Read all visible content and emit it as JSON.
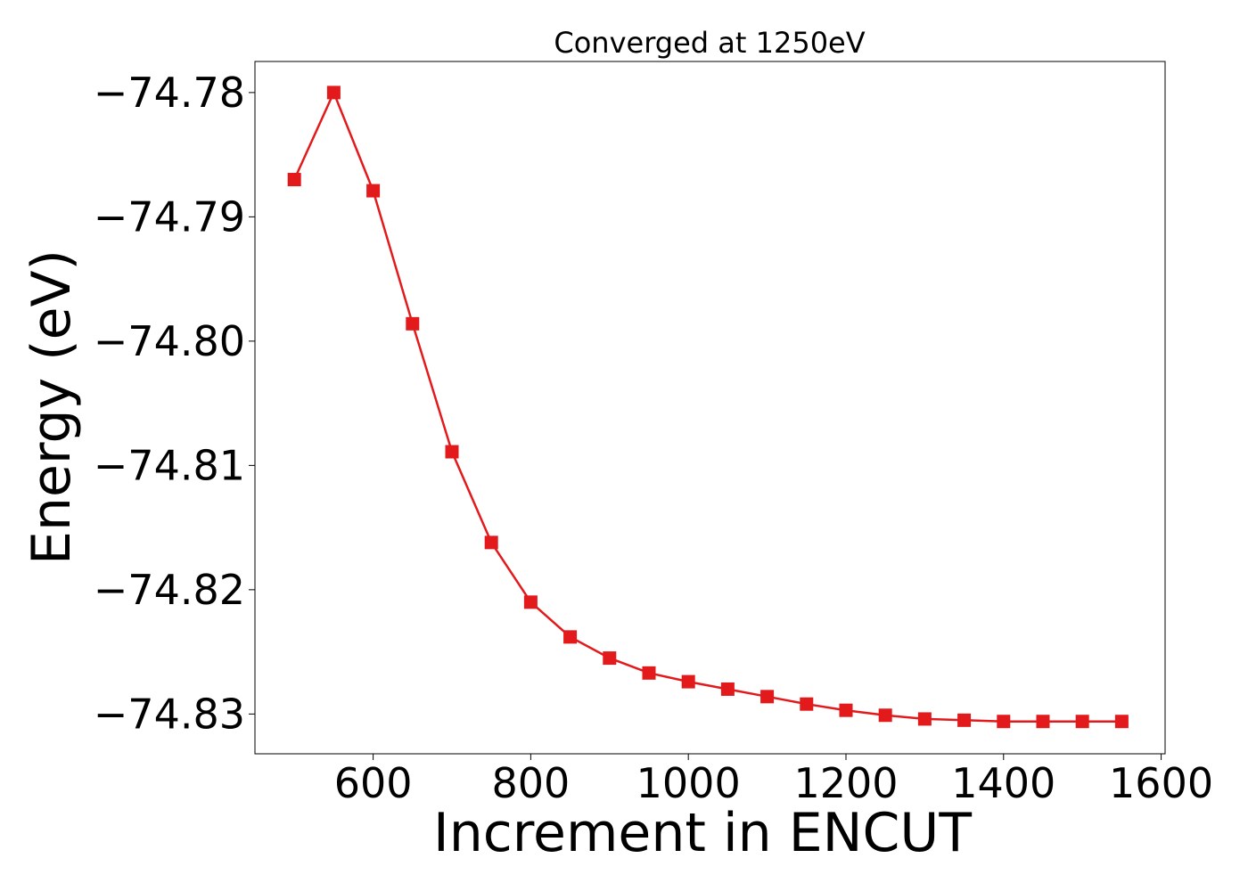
{
  "chart_data": {
    "type": "line",
    "title": "Converged at 1250eV",
    "xlabel": "Increment in ENCUT",
    "ylabel": "Energy (eV)",
    "xlim": [
      450,
      1605
    ],
    "ylim": [
      -74.8332,
      -74.7775
    ],
    "xticks": [
      600,
      800,
      1000,
      1200,
      1400,
      1600
    ],
    "xtick_labels": [
      "600",
      "800",
      "1000",
      "1200",
      "1400",
      "1600"
    ],
    "yticks": [
      -74.78,
      -74.79,
      -74.8,
      -74.81,
      -74.82,
      -74.83
    ],
    "ytick_labels": [
      "−74.78",
      "−74.79",
      "−74.80",
      "−74.81",
      "−74.82",
      "−74.83"
    ],
    "grid": false,
    "series": [
      {
        "color": "#e31a1c",
        "marker": "square",
        "x": [
          500,
          550,
          600,
          650,
          700,
          750,
          800,
          850,
          900,
          950,
          1000,
          1050,
          1100,
          1150,
          1200,
          1250,
          1300,
          1350,
          1400,
          1450,
          1500,
          1550
        ],
        "y": [
          -74.787,
          -74.78,
          -74.7879,
          -74.7986,
          -74.8089,
          -74.8162,
          -74.821,
          -74.8238,
          -74.8255,
          -74.8267,
          -74.8274,
          -74.828,
          -74.8286,
          -74.8292,
          -74.8297,
          -74.8301,
          -74.8304,
          -74.8305,
          -74.8306,
          -74.8306,
          -74.8306,
          -74.8306
        ]
      }
    ]
  }
}
